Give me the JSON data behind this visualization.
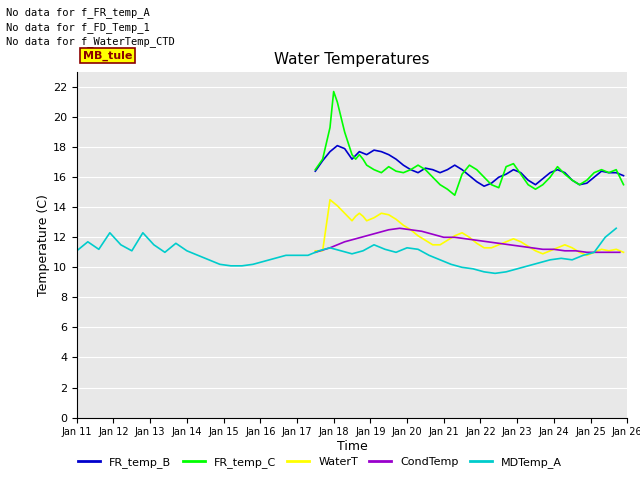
{
  "title": "Water Temperatures",
  "xlabel": "Time",
  "ylabel": "Temperature (C)",
  "ylim": [
    0,
    23
  ],
  "yticks": [
    0,
    2,
    4,
    6,
    8,
    10,
    12,
    14,
    16,
    18,
    20,
    22
  ],
  "annotations_text": [
    "No data for f_FR_temp_A",
    "No data for f_FD_Temp_1",
    "No data for f_WaterTemp_CTD"
  ],
  "mb_tule_label": "MB_tule",
  "legend_labels": [
    "FR_temp_B",
    "FR_temp_C",
    "WaterT",
    "CondTemp",
    "MDTemp_A"
  ],
  "legend_colors": [
    "#0000cc",
    "#00ff00",
    "#ffff00",
    "#9900cc",
    "#00cccc"
  ],
  "x_tick_labels": [
    "Jan 11",
    "Jan 12",
    "Jan 13",
    "Jan 14",
    "Jan 15",
    "Jan 16",
    "Jan 17",
    "Jan 18",
    "Jan 19",
    "Jan 20",
    "Jan 21",
    "Jan 22",
    "Jan 23",
    "Jan 24",
    "Jan 25",
    "Jan 26"
  ],
  "FR_temp_B_x": [
    17.5,
    17.7,
    17.9,
    18.1,
    18.3,
    18.5,
    18.7,
    18.9,
    19.1,
    19.3,
    19.5,
    19.7,
    19.9,
    20.1,
    20.3,
    20.5,
    20.7,
    20.9,
    21.1,
    21.3,
    21.5,
    21.7,
    21.9,
    22.1,
    22.3,
    22.5,
    22.7,
    22.9,
    23.1,
    23.3,
    23.5,
    23.7,
    23.9,
    24.1,
    24.3,
    24.5,
    24.7,
    24.9,
    25.1,
    25.3,
    25.5,
    25.7,
    25.9
  ],
  "FR_temp_B_y": [
    16.4,
    17.1,
    17.7,
    18.1,
    17.9,
    17.2,
    17.7,
    17.5,
    17.8,
    17.7,
    17.5,
    17.2,
    16.8,
    16.5,
    16.3,
    16.6,
    16.5,
    16.3,
    16.5,
    16.8,
    16.5,
    16.1,
    15.7,
    15.4,
    15.6,
    16.0,
    16.2,
    16.5,
    16.3,
    15.8,
    15.5,
    15.9,
    16.3,
    16.5,
    16.3,
    15.8,
    15.5,
    15.6,
    16.0,
    16.4,
    16.3,
    16.3,
    16.1
  ],
  "FR_temp_C_x": [
    17.5,
    17.7,
    17.9,
    18.0,
    18.1,
    18.3,
    18.5,
    18.6,
    18.7,
    18.8,
    18.9,
    19.1,
    19.3,
    19.5,
    19.7,
    19.9,
    20.1,
    20.3,
    20.5,
    20.7,
    20.9,
    21.1,
    21.3,
    21.5,
    21.7,
    21.9,
    22.1,
    22.3,
    22.5,
    22.7,
    22.9,
    23.1,
    23.3,
    23.5,
    23.7,
    23.9,
    24.1,
    24.3,
    24.5,
    24.7,
    24.9,
    25.1,
    25.3,
    25.5,
    25.7,
    25.9
  ],
  "FR_temp_C_y": [
    16.5,
    17.2,
    19.3,
    21.7,
    21.0,
    19.0,
    17.5,
    17.2,
    17.5,
    17.2,
    16.8,
    16.5,
    16.3,
    16.7,
    16.4,
    16.3,
    16.5,
    16.8,
    16.5,
    16.0,
    15.5,
    15.2,
    14.8,
    16.2,
    16.8,
    16.5,
    16.0,
    15.5,
    15.3,
    16.7,
    16.9,
    16.2,
    15.5,
    15.2,
    15.5,
    16.0,
    16.7,
    16.2,
    15.8,
    15.5,
    15.8,
    16.3,
    16.5,
    16.3,
    16.5,
    15.5
  ],
  "WaterT_x": [
    17.5,
    17.7,
    17.9,
    18.1,
    18.3,
    18.5,
    18.6,
    18.7,
    18.8,
    18.9,
    19.1,
    19.3,
    19.5,
    19.7,
    19.9,
    20.1,
    20.3,
    20.5,
    20.7,
    20.9,
    21.1,
    21.3,
    21.5,
    21.7,
    21.9,
    22.1,
    22.3,
    22.5,
    22.7,
    22.9,
    23.1,
    23.3,
    23.5,
    23.7,
    23.9,
    24.1,
    24.3,
    24.5,
    24.7,
    24.9,
    25.1,
    25.3,
    25.5,
    25.7,
    25.9
  ],
  "WaterT_y": [
    11.1,
    11.1,
    14.5,
    14.1,
    13.6,
    13.1,
    13.4,
    13.6,
    13.4,
    13.1,
    13.3,
    13.6,
    13.5,
    13.2,
    12.8,
    12.5,
    12.1,
    11.8,
    11.5,
    11.5,
    11.8,
    12.1,
    12.3,
    12.0,
    11.6,
    11.3,
    11.3,
    11.5,
    11.7,
    11.9,
    11.7,
    11.4,
    11.1,
    10.9,
    11.1,
    11.3,
    11.5,
    11.3,
    11.0,
    10.8,
    11.0,
    11.2,
    11.1,
    11.2,
    11.0
  ],
  "CondTemp_x": [
    17.5,
    17.9,
    18.3,
    18.6,
    18.9,
    19.2,
    19.5,
    19.8,
    20.1,
    20.4,
    20.7,
    21.0,
    21.3,
    21.6,
    21.9,
    22.2,
    22.5,
    22.8,
    23.1,
    23.4,
    23.7,
    24.0,
    24.3,
    24.6,
    24.9,
    25.2,
    25.5,
    25.8
  ],
  "CondTemp_y": [
    11.0,
    11.3,
    11.7,
    11.9,
    12.1,
    12.3,
    12.5,
    12.6,
    12.5,
    12.4,
    12.2,
    12.0,
    12.0,
    11.9,
    11.8,
    11.7,
    11.6,
    11.5,
    11.4,
    11.3,
    11.2,
    11.2,
    11.1,
    11.1,
    11.0,
    11.0,
    11.0,
    11.0
  ],
  "MDTemp_A_x": [
    11.0,
    11.3,
    11.6,
    11.9,
    12.2,
    12.5,
    12.8,
    13.1,
    13.4,
    13.7,
    14.0,
    14.3,
    14.6,
    14.9,
    15.2,
    15.5,
    15.8,
    16.1,
    16.4,
    16.7,
    17.0,
    17.3,
    17.6,
    17.9,
    18.2,
    18.5,
    18.8,
    19.1,
    19.4,
    19.7,
    20.0,
    20.3,
    20.6,
    20.9,
    21.2,
    21.5,
    21.8,
    22.1,
    22.4,
    22.7,
    23.0,
    23.3,
    23.6,
    23.9,
    24.2,
    24.5,
    24.8,
    25.1,
    25.4,
    25.7
  ],
  "MDTemp_A_y": [
    11.1,
    11.7,
    11.2,
    12.3,
    11.5,
    11.1,
    12.3,
    11.5,
    11.0,
    11.6,
    11.1,
    10.8,
    10.5,
    10.2,
    10.1,
    10.1,
    10.2,
    10.4,
    10.6,
    10.8,
    10.8,
    10.8,
    11.1,
    11.3,
    11.1,
    10.9,
    11.1,
    11.5,
    11.2,
    11.0,
    11.3,
    11.2,
    10.8,
    10.5,
    10.2,
    10.0,
    9.9,
    9.7,
    9.6,
    9.7,
    9.9,
    10.1,
    10.3,
    10.5,
    10.6,
    10.5,
    10.8,
    11.0,
    12.0,
    12.6
  ]
}
